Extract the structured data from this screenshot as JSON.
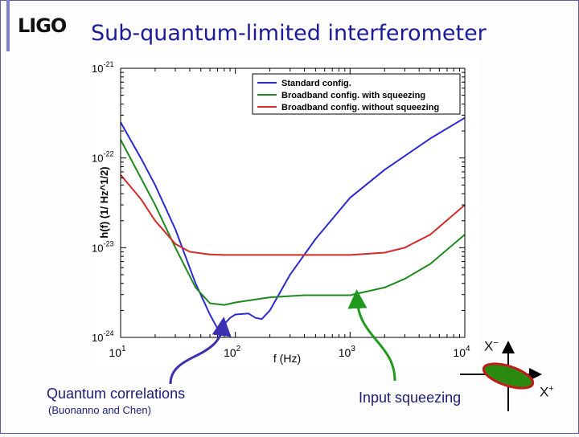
{
  "slide": {
    "logo": "LIGO",
    "title": "Sub-quantum-limited interferometer"
  },
  "chart_data": {
    "type": "line",
    "xlabel": "f (Hz)",
    "ylabel": "h(f) (1/ Hz^1/2)",
    "x_scale": "log",
    "y_scale": "log",
    "xlim": [
      10,
      10000
    ],
    "ylim": [
      1e-24,
      1e-21
    ],
    "x_ticks": [
      {
        "base": "10",
        "exp": "1"
      },
      {
        "base": "10",
        "exp": "2"
      },
      {
        "base": "10",
        "exp": "3"
      },
      {
        "base": "10",
        "exp": "4"
      }
    ],
    "y_ticks": [
      {
        "base": "10",
        "exp": "-24"
      },
      {
        "base": "10",
        "exp": "-23"
      },
      {
        "base": "10",
        "exp": "-22"
      },
      {
        "base": "10",
        "exp": "-21"
      }
    ],
    "legend_position": "top-right",
    "series": [
      {
        "name": "Standard config.",
        "color": "#2a2ad0",
        "x": [
          10,
          15,
          20,
          30,
          45,
          60,
          70,
          80,
          90,
          100,
          130,
          150,
          170,
          200,
          300,
          500,
          1000,
          2000,
          5000,
          10000
        ],
        "y": [
          2.5e-22,
          1e-22,
          5e-23,
          1.6e-23,
          4e-24,
          1.8e-24,
          1.25e-24,
          1.4e-24,
          1.65e-24,
          1.8e-24,
          1.85e-24,
          1.65e-24,
          1.6e-24,
          2e-24,
          5e-24,
          1.25e-23,
          3.6e-23,
          7.4e-23,
          1.65e-22,
          2.8e-22
        ]
      },
      {
        "name": "Broadband config. with squeezing",
        "color": "#1e8a1e",
        "x": [
          10,
          15,
          20,
          30,
          45,
          60,
          80,
          100,
          200,
          400,
          1000,
          2000,
          3000,
          5000,
          10000
        ],
        "y": [
          1.6e-22,
          6e-23,
          3e-23,
          1e-23,
          3.6e-24,
          2.4e-24,
          2.3e-24,
          2.45e-24,
          2.8e-24,
          2.95e-24,
          2.95e-24,
          3.6e-24,
          4.5e-24,
          6.6e-24,
          1.4e-23
        ]
      },
      {
        "name": "Broadband config. without squeezing",
        "color": "#d42a2a",
        "x": [
          10,
          15,
          20,
          30,
          40,
          60,
          80,
          100,
          1000,
          2000,
          3000,
          5000,
          10000
        ],
        "y": [
          6.5e-23,
          3.5e-23,
          2e-23,
          1.1e-23,
          9e-24,
          8.4e-24,
          8.3e-24,
          8.3e-24,
          8.3e-24,
          8.8e-24,
          1e-23,
          1.4e-23,
          3e-23
        ]
      }
    ]
  },
  "annotations": {
    "quantum_correlations": "Quantum correlations",
    "quantum_correlations_ref": "(Buonanno and Chen)",
    "input_squeezing": "Input squeezing",
    "x_minus_base": "X",
    "x_minus_sup": "−",
    "x_plus_base": "X",
    "x_plus_sup": "+"
  },
  "colors": {
    "title": "#1b1b99",
    "arrow_blue": "#3a30b0",
    "arrow_green": "#1f9a1f",
    "ellipse_fill": "#2a8a10",
    "ellipse_edge": "#c41a1a"
  }
}
